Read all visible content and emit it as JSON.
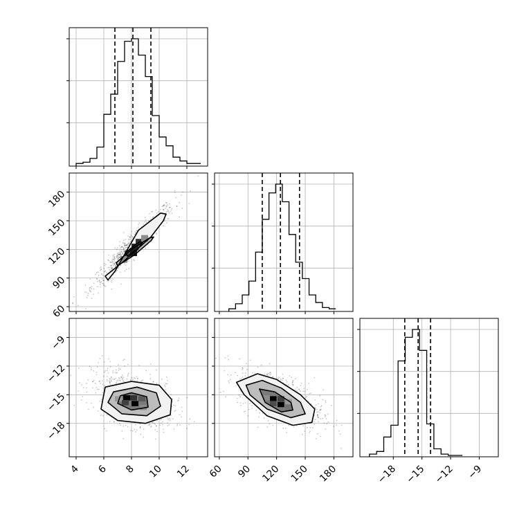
{
  "chart_data": {
    "type": "corner",
    "grid": true,
    "params": [
      {
        "range": [
          3.5,
          13.5
        ],
        "ticks": [
          4,
          6,
          8,
          10,
          12
        ],
        "tick_labels": [
          "4",
          "6",
          "8",
          "10",
          "12"
        ],
        "quantiles": [
          6.8,
          8.1,
          9.4
        ],
        "hist": {
          "bin_start": 4.0,
          "bin_width": 0.5,
          "counts": [
            1,
            2,
            5,
            14,
            40,
            56,
            82,
            98,
            100,
            87,
            70,
            39,
            22,
            15,
            6,
            3,
            1,
            1
          ]
        }
      },
      {
        "range": [
          55,
          200
        ],
        "ticks": [
          60,
          90,
          120,
          150,
          180
        ],
        "tick_labels": [
          "60",
          "90",
          "120",
          "150",
          "180"
        ],
        "quantiles": [
          105,
          124,
          144
        ],
        "hist": {
          "bin_start": 70,
          "bin_width": 7,
          "counts": [
            1,
            5,
            12,
            23,
            46,
            72,
            93,
            100,
            86,
            60,
            38,
            25,
            12,
            6,
            2,
            1
          ]
        }
      },
      {
        "range": [
          -21.5,
          -7.0
        ],
        "ticks": [
          -18,
          -15,
          -12,
          -9
        ],
        "tick_labels": [
          "−18",
          "−15",
          "−12",
          "−9"
        ],
        "quantiles": [
          -16.8,
          -15.4,
          -14.1
        ],
        "hist": {
          "bin_start": -20.5,
          "bin_width": 0.75,
          "counts": [
            1,
            3,
            14,
            23,
            72,
            90,
            96,
            80,
            24,
            5,
            1,
            0,
            0
          ]
        }
      }
    ],
    "panels": [
      {
        "row": 1,
        "col": 0,
        "contours": [
          [
            [
              6.3,
              88
            ],
            [
              6.1,
              92
            ],
            [
              7.4,
              107
            ],
            [
              9.4,
              133
            ],
            [
              10.3,
              150
            ],
            [
              10.5,
              157
            ],
            [
              10.1,
              158
            ],
            [
              8.5,
              140
            ],
            [
              6.8,
              97
            ]
          ],
          [
            [
              7.0,
              103
            ],
            [
              6.9,
              106
            ],
            [
              8.0,
              120
            ],
            [
              9.3,
              132
            ],
            [
              9.6,
              133
            ],
            [
              9.4,
              129
            ],
            [
              8.2,
              114
            ]
          ],
          [
            [
              7.7,
              113
            ],
            [
              7.6,
              117
            ],
            [
              8.2,
              124
            ],
            [
              8.6,
              128
            ],
            [
              8.8,
              127
            ],
            [
              8.5,
              121
            ]
          ]
        ],
        "cells": [
          {
            "x": 7.5,
            "y": 112,
            "w": 0.5,
            "h": 7,
            "shade": 0.3
          },
          {
            "x": 8.0,
            "y": 119,
            "w": 0.5,
            "h": 7,
            "shade": 0.15
          },
          {
            "x": 7.9,
            "y": 113,
            "w": 0.5,
            "h": 7,
            "shade": 0.1
          },
          {
            "x": 8.3,
            "y": 124,
            "w": 0.5,
            "h": 7,
            "shade": 0.2
          },
          {
            "x": 7.2,
            "y": 106,
            "w": 0.5,
            "h": 7,
            "shade": 0.55
          },
          {
            "x": 8.7,
            "y": 128,
            "w": 0.5,
            "h": 7,
            "shade": 0.55
          }
        ]
      },
      {
        "row": 2,
        "col": 0,
        "contours": [
          [
            [
              5.8,
              -16.5
            ],
            [
              7.0,
              -17.7
            ],
            [
              9.0,
              -18.0
            ],
            [
              10.8,
              -17.1
            ],
            [
              10.9,
              -15.5
            ],
            [
              10.0,
              -14.0
            ],
            [
              8.0,
              -13.6
            ],
            [
              6.1,
              -14.2
            ]
          ],
          [
            [
              6.3,
              -15.8
            ],
            [
              7.3,
              -17.0
            ],
            [
              9.1,
              -17.2
            ],
            [
              10.1,
              -16.2
            ],
            [
              9.8,
              -14.8
            ],
            [
              8.4,
              -14.2
            ],
            [
              6.7,
              -14.7
            ]
          ],
          [
            [
              7.0,
              -15.9
            ],
            [
              8.0,
              -16.6
            ],
            [
              9.2,
              -16.3
            ],
            [
              9.1,
              -15.2
            ],
            [
              8.0,
              -14.8
            ],
            [
              7.2,
              -15.1
            ]
          ]
        ],
        "cells": [
          {
            "x": 7.4,
            "y": -15.6,
            "w": 0.5,
            "h": 0.55,
            "shade": 0.0
          },
          {
            "x": 8.0,
            "y": -16.2,
            "w": 0.5,
            "h": 0.55,
            "shade": 0.0
          },
          {
            "x": 7.9,
            "y": -15.6,
            "w": 0.5,
            "h": 0.55,
            "shade": 0.2
          },
          {
            "x": 7.3,
            "y": -16.1,
            "w": 0.5,
            "h": 0.55,
            "shade": 0.25
          },
          {
            "x": 8.5,
            "y": -15.7,
            "w": 0.5,
            "h": 0.55,
            "shade": 0.35
          },
          {
            "x": 8.6,
            "y": -16.6,
            "w": 0.5,
            "h": 0.55,
            "shade": 0.55
          },
          {
            "x": 6.8,
            "y": -15.7,
            "w": 0.5,
            "h": 0.55,
            "shade": 0.6
          }
        ]
      },
      {
        "row": 2,
        "col": 1,
        "contours": [
          [
            [
              78,
              -13.7
            ],
            [
              100,
              -12.8
            ],
            [
              120,
              -13.4
            ],
            [
              145,
              -15.0
            ],
            [
              160,
              -16.5
            ],
            [
              157,
              -17.9
            ],
            [
              137,
              -18.2
            ],
            [
              110,
              -17.2
            ],
            [
              86,
              -15.0
            ]
          ],
          [
            [
              88,
              -14.0
            ],
            [
              105,
              -13.5
            ],
            [
              125,
              -14.3
            ],
            [
              145,
              -15.8
            ],
            [
              150,
              -17.0
            ],
            [
              135,
              -17.4
            ],
            [
              110,
              -16.5
            ],
            [
              92,
              -15.0
            ]
          ],
          [
            [
              102,
              -14.4
            ],
            [
              118,
              -14.7
            ],
            [
              135,
              -15.8
            ],
            [
              137,
              -16.6
            ],
            [
              125,
              -16.8
            ],
            [
              108,
              -15.8
            ]
          ]
        ],
        "cells": [
          {
            "x": 113,
            "y": -15.7,
            "w": 7,
            "h": 0.55,
            "shade": 0.0
          },
          {
            "x": 121,
            "y": -16.3,
            "w": 7,
            "h": 0.55,
            "shade": 0.0
          },
          {
            "x": 113,
            "y": -16.2,
            "w": 7,
            "h": 0.55,
            "shade": 0.3
          },
          {
            "x": 121,
            "y": -15.7,
            "w": 7,
            "h": 0.55,
            "shade": 0.25
          },
          {
            "x": 106,
            "y": -15.6,
            "w": 7,
            "h": 0.55,
            "shade": 0.55
          },
          {
            "x": 129,
            "y": -16.6,
            "w": 7,
            "h": 0.55,
            "shade": 0.45
          },
          {
            "x": 129,
            "y": -16.0,
            "w": 7,
            "h": 0.55,
            "shade": 0.6
          }
        ]
      }
    ],
    "scatter_samples": 700
  }
}
